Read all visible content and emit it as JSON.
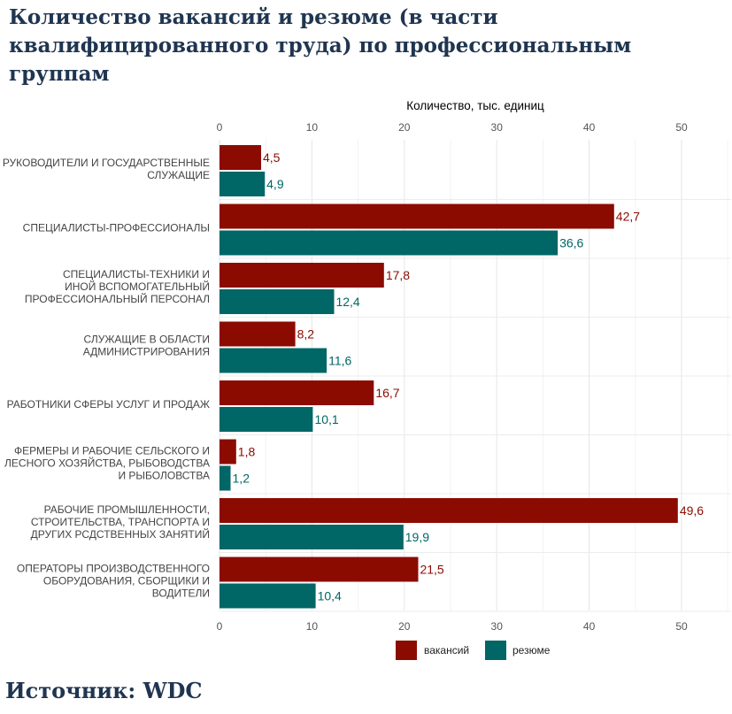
{
  "title": "Количество вакансий и резюме (в части квалифицированного труда) по профессиональным группам",
  "source": "Источник: WDC",
  "chart_data": {
    "type": "bar",
    "orientation": "horizontal",
    "xlabel": "Количество, тыс. единиц",
    "xlim": [
      0,
      55
    ],
    "xticks": [
      0,
      10,
      20,
      30,
      40,
      50
    ],
    "grid": true,
    "legend_position": "bottom",
    "categories": [
      [
        "РУКОВОДИТЕЛИ И ГОСУДАРСТВЕННЫЕ",
        "СЛУЖАЩИЕ"
      ],
      [
        "СПЕЦИАЛИСТЫ-ПРОФЕССИОНАЛЫ"
      ],
      [
        "СПЕЦИАЛИСТЫ-ТЕХНИКИ И",
        "ИНОЙ ВСПОМОГАТЕЛЬНЫЙ",
        "ПРОФЕССИОНАЛЬНЫЙ ПЕРСОНАЛ"
      ],
      [
        "СЛУЖАЩИЕ В ОБЛАСТИ",
        "АДМИНИСТРИРОВАНИЯ"
      ],
      [
        "РАБОТНИКИ СФЕРЫ УСЛУГ И ПРОДАЖ"
      ],
      [
        "ФЕРМЕРЫ И РАБОЧИЕ СЕЛЬСКОГО И",
        "ЛЕСНОГО ХОЗЯЙСТВА, РЫБОВОДСТВА",
        "И РЫБОЛОВСТВА"
      ],
      [
        "РАБОЧИЕ ПРОМЫШЛЕННОСТИ,",
        "СТРОИТЕЛЬСТВА, ТРАНСПОРТА И",
        "ДРУГИХ РСДСТВЕННЫХ ЗАНЯТИЙ"
      ],
      [
        "ОПЕРАТОРЫ ПРОИЗВОДСТВЕННОГО",
        "ОБОРУДОВАНИЯ, СБОРЩИКИ И",
        "ВОДИТЕЛИ"
      ]
    ],
    "series": [
      {
        "name": "вакансий",
        "color": "#8b0b00",
        "values": [
          4.5,
          42.7,
          17.8,
          8.2,
          16.7,
          1.8,
          49.6,
          21.5
        ],
        "labels": [
          "4,5",
          "42,7",
          "17,8",
          "8,2",
          "16,7",
          "1,8",
          "49,6",
          "21,5"
        ]
      },
      {
        "name": "резюме",
        "color": "#006666",
        "values": [
          4.9,
          36.6,
          12.4,
          11.6,
          10.1,
          1.2,
          19.9,
          10.4
        ],
        "labels": [
          "4,9",
          "36,6",
          "12,4",
          "11,6",
          "10,1",
          "1,2",
          "19,9",
          "10,4"
        ]
      }
    ]
  }
}
